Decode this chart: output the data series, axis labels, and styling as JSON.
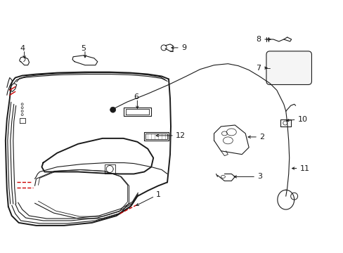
{
  "background_color": "#ffffff",
  "line_color": "#1a1a1a",
  "red_color": "#cc0000",
  "fig_width": 4.89,
  "fig_height": 3.6,
  "dpi": 100
}
